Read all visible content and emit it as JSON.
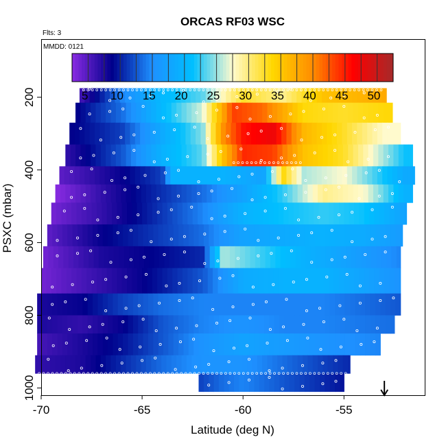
{
  "chart_data": {
    "type": "heatmap",
    "title": "ORCAS RF03 WSC",
    "note_flights": "Flts: 3",
    "note_date": "MMDD: 0121",
    "xlabel": "Latitude (deg N)",
    "ylabel": "PSXC (mbar)",
    "xlim": [
      -70,
      -51
    ],
    "ylim": [
      1020,
      40
    ],
    "x_ticks": [
      -70,
      -65,
      -60,
      -55
    ],
    "y_ticks": [
      200,
      400,
      600,
      800,
      1000
    ],
    "colorbar": {
      "range": [
        3,
        53
      ],
      "ticks": [
        5,
        10,
        15,
        20,
        25,
        30,
        35,
        40,
        45,
        50
      ],
      "stops": [
        "#8a2be2",
        "#00008b",
        "#1e90ff",
        "#00bfff",
        "#fffacd",
        "#ffd700",
        "#ff8c00",
        "#ff0000",
        "#a52a2a"
      ]
    },
    "pressure_bands": [
      {
        "p_top": 175,
        "p_bottom": 215,
        "lat_start": -68.1,
        "lat_end": -52.9,
        "knots": [
          [
            -68.1,
            6
          ],
          [
            -66,
            15
          ],
          [
            -64,
            21
          ],
          [
            -62,
            24
          ],
          [
            -60,
            33
          ],
          [
            -58,
            30
          ],
          [
            -56,
            36
          ],
          [
            -53,
            38
          ]
        ]
      },
      {
        "p_top": 215,
        "p_bottom": 270,
        "lat_start": -68.3,
        "lat_end": -52.6,
        "knots": [
          [
            -68.3,
            9
          ],
          [
            -66,
            14
          ],
          [
            -64,
            21
          ],
          [
            -62,
            27
          ],
          [
            -60.5,
            44
          ],
          [
            -59,
            42
          ],
          [
            -57,
            34
          ],
          [
            -55,
            33
          ],
          [
            -53,
            34
          ]
        ]
      },
      {
        "p_top": 270,
        "p_bottom": 330,
        "lat_start": -68.6,
        "lat_end": -52.2,
        "knots": [
          [
            -68.6,
            9
          ],
          [
            -66,
            12
          ],
          [
            -64,
            19
          ],
          [
            -62,
            25
          ],
          [
            -61,
            40
          ],
          [
            -60,
            46
          ],
          [
            -58.5,
            48
          ],
          [
            -57,
            37
          ],
          [
            -55,
            33
          ],
          [
            -53,
            28
          ]
        ]
      },
      {
        "p_top": 330,
        "p_bottom": 390,
        "lat_start": -68.8,
        "lat_end": -51.6,
        "knots": [
          [
            -68.8,
            7
          ],
          [
            -66,
            13
          ],
          [
            -64,
            20
          ],
          [
            -62,
            24
          ],
          [
            -61,
            36
          ],
          [
            -60,
            45
          ],
          [
            -58.5,
            44
          ],
          [
            -57,
            36
          ],
          [
            -55,
            33
          ],
          [
            -52,
            22
          ]
        ]
      },
      {
        "p_top": 390,
        "p_bottom": 440,
        "lat_start": -69.1,
        "lat_end": -51.5,
        "knots": [
          [
            -69.1,
            5
          ],
          [
            -66,
            9
          ],
          [
            -64,
            12
          ],
          [
            -63.5,
            20
          ],
          [
            -61,
            20
          ],
          [
            -59,
            18
          ],
          [
            -58,
            34
          ],
          [
            -57,
            26
          ],
          [
            -55,
            28
          ],
          [
            -52,
            19
          ]
        ]
      },
      {
        "p_top": 440,
        "p_bottom": 490,
        "lat_start": -69.3,
        "lat_end": -51.6,
        "knots": [
          [
            -69.3,
            3
          ],
          [
            -67,
            7
          ],
          [
            -65,
            10
          ],
          [
            -62,
            14
          ],
          [
            -60,
            18
          ],
          [
            -58,
            23
          ],
          [
            -56,
            30
          ],
          [
            -54,
            28
          ],
          [
            -52,
            20
          ]
        ]
      },
      {
        "p_top": 490,
        "p_bottom": 550,
        "lat_start": -69.5,
        "lat_end": -51.9,
        "knots": [
          [
            -69.5,
            4
          ],
          [
            -67,
            7
          ],
          [
            -65,
            10
          ],
          [
            -62,
            15
          ],
          [
            -60,
            20
          ],
          [
            -58,
            22
          ],
          [
            -56,
            23
          ],
          [
            -54,
            22
          ],
          [
            -52,
            18
          ]
        ]
      },
      {
        "p_top": 550,
        "p_bottom": 610,
        "lat_start": -69.7,
        "lat_end": -52.1,
        "knots": [
          [
            -69.7,
            5
          ],
          [
            -67,
            9
          ],
          [
            -65,
            11
          ],
          [
            -62,
            14
          ],
          [
            -60,
            18
          ],
          [
            -58,
            19
          ],
          [
            -56,
            20
          ],
          [
            -54,
            19
          ],
          [
            -52.1,
            17
          ]
        ]
      },
      {
        "p_top": 610,
        "p_bottom": 670,
        "lat_start": -69.9,
        "lat_end": -52.2,
        "knots": [
          [
            -69.9,
            4
          ],
          [
            -67,
            8
          ],
          [
            -65,
            9
          ],
          [
            -62,
            11
          ],
          [
            -61,
            26
          ],
          [
            -59,
            23
          ],
          [
            -57,
            20
          ],
          [
            -55,
            18
          ],
          [
            -52.2,
            15
          ]
        ]
      },
      {
        "p_top": 670,
        "p_bottom": 740,
        "lat_start": -70,
        "lat_end": -52.2,
        "knots": [
          [
            -70,
            4
          ],
          [
            -67,
            7
          ],
          [
            -65,
            9
          ],
          [
            -62,
            13
          ],
          [
            -60,
            19
          ],
          [
            -58,
            20
          ],
          [
            -56,
            20
          ],
          [
            -54,
            18
          ],
          [
            -52.2,
            16
          ]
        ]
      },
      {
        "p_top": 740,
        "p_bottom": 800,
        "lat_start": -70.2,
        "lat_end": -52.2,
        "knots": [
          [
            -70.2,
            8
          ],
          [
            -68,
            9
          ],
          [
            -66,
            12
          ],
          [
            -64,
            14
          ],
          [
            -62,
            15
          ],
          [
            -60,
            15
          ],
          [
            -58,
            15
          ],
          [
            -56,
            15
          ],
          [
            -52.2,
            13
          ]
        ]
      },
      {
        "p_top": 800,
        "p_bottom": 850,
        "lat_start": -70.2,
        "lat_end": -52.5,
        "knots": [
          [
            -70.2,
            8
          ],
          [
            -68,
            7
          ],
          [
            -66,
            9
          ],
          [
            -64,
            13
          ],
          [
            -62,
            15
          ],
          [
            -60,
            16
          ],
          [
            -58,
            15
          ],
          [
            -56,
            15
          ],
          [
            -52.5,
            14
          ]
        ]
      },
      {
        "p_top": 850,
        "p_bottom": 910,
        "lat_start": -70.2,
        "lat_end": -53.2,
        "knots": [
          [
            -70.2,
            6
          ],
          [
            -68,
            8
          ],
          [
            -66,
            10
          ],
          [
            -64,
            13
          ],
          [
            -62,
            16
          ],
          [
            -60,
            18
          ],
          [
            -58,
            17
          ],
          [
            -56,
            16
          ],
          [
            -53.2,
            15
          ]
        ]
      },
      {
        "p_top": 910,
        "p_bottom": 960,
        "lat_start": -70.3,
        "lat_end": -54.7,
        "knots": [
          [
            -70.3,
            7
          ],
          [
            -68,
            8
          ],
          [
            -66,
            11
          ],
          [
            -64,
            14
          ],
          [
            -62,
            16
          ],
          [
            -60,
            16
          ],
          [
            -58,
            14
          ],
          [
            -56,
            12
          ],
          [
            -54.7,
            11
          ]
        ]
      },
      {
        "p_top": 960,
        "p_bottom": 1010,
        "lat_start": -62.2,
        "lat_end": -55,
        "knots": [
          [
            -62.2,
            12
          ],
          [
            -61,
            14
          ],
          [
            -60,
            15
          ],
          [
            -58,
            13
          ],
          [
            -56,
            11
          ],
          [
            -55,
            10
          ]
        ]
      }
    ],
    "flight_track_levels": [
      180,
      380,
      960
    ],
    "arrow_marker": {
      "latitude": -53
    }
  }
}
